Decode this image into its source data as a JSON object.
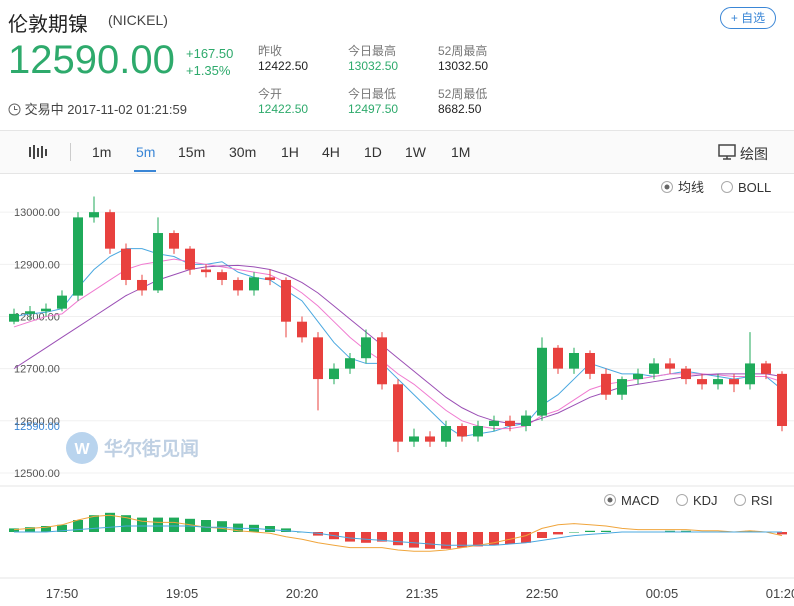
{
  "header": {
    "title": "伦敦期镍",
    "code": "(NICKEL)",
    "price": "12590.00",
    "change": "+167.50",
    "change_pct": "+1.35%",
    "status": "交易中 2017-11-02 01:21:59",
    "watch_button": "+ 自选",
    "stats": [
      {
        "label": "昨收",
        "value": "12422.50"
      },
      {
        "label": "今日最高",
        "value": "13032.50"
      },
      {
        "label": "52周最高",
        "value": "13032.50"
      },
      {
        "label": "今开",
        "value": "12422.50"
      },
      {
        "label": "今日最低",
        "value": "12497.50"
      },
      {
        "label": "52周最低",
        "value": "8682.50"
      }
    ]
  },
  "toolbar": {
    "intervals": [
      "1m",
      "5m",
      "15m",
      "30m",
      "1H",
      "4H",
      "1D",
      "1W",
      "1M"
    ],
    "active": "5m",
    "draw": "绘图"
  },
  "watermark": "华尔街见闻",
  "chart_data": {
    "type": "candlestick",
    "indicator_options": [
      "均线",
      "BOLL"
    ],
    "lower_options": [
      "MACD",
      "KDJ",
      "RSI"
    ],
    "xlabels": [
      "17:50",
      "19:05",
      "20:20",
      "21:35",
      "22:50",
      "00:05",
      "01:20"
    ],
    "ylim": [
      12475,
      13077
    ],
    "yticks": [
      {
        "value": 12500,
        "label": "12500.00"
      },
      {
        "value": 12600,
        "label": "12600.00"
      },
      {
        "value": 12700,
        "label": "12700.00"
      },
      {
        "value": 12800,
        "label": "12800.00"
      },
      {
        "value": 12900,
        "label": "12900.00"
      },
      {
        "value": 13000,
        "label": "13000.00"
      }
    ],
    "up_color": "#1faa5a",
    "down_color": "#e8413e",
    "open": [
      12790,
      12805,
      12810,
      12815,
      12840,
      12990,
      13000,
      12930,
      12870,
      12850,
      12960,
      12930,
      12890,
      12885,
      12870,
      12850,
      12875,
      12870,
      12790,
      12760,
      12680,
      12700,
      12720,
      12760,
      12670,
      12560,
      12570,
      12560,
      12590,
      12570,
      12590,
      12600,
      12590,
      12610,
      12740,
      12700,
      12730,
      12690,
      12650,
      12680,
      12690,
      12710,
      12700,
      12680,
      12670,
      12680,
      12670,
      12710,
      12690
    ],
    "high": [
      12815,
      12820,
      12825,
      12850,
      13000,
      13030,
      13005,
      12940,
      12880,
      12990,
      12965,
      12935,
      12900,
      12890,
      12875,
      12885,
      12890,
      12875,
      12800,
      12770,
      12710,
      12730,
      12775,
      12770,
      12680,
      12585,
      12580,
      12600,
      12595,
      12600,
      12610,
      12610,
      12620,
      12760,
      12745,
      12740,
      12735,
      12700,
      12685,
      12700,
      12720,
      12720,
      12705,
      12690,
      12690,
      12690,
      12770,
      12715,
      12695
    ],
    "low": [
      12785,
      12795,
      12800,
      12810,
      12830,
      12980,
      12920,
      12860,
      12840,
      12845,
      12920,
      12880,
      12875,
      12860,
      12840,
      12840,
      12860,
      12760,
      12750,
      12620,
      12670,
      12690,
      12710,
      12660,
      12540,
      12550,
      12550,
      12550,
      12560,
      12560,
      12580,
      12580,
      12580,
      12600,
      12690,
      12690,
      12680,
      12640,
      12640,
      12670,
      12680,
      12690,
      12670,
      12660,
      12660,
      12655,
      12660,
      12680,
      12580
    ],
    "close": [
      12805,
      12810,
      12815,
      12840,
      12990,
      13000,
      12930,
      12870,
      12850,
      12960,
      12930,
      12890,
      12885,
      12870,
      12850,
      12875,
      12870,
      12790,
      12760,
      12680,
      12700,
      12720,
      12760,
      12670,
      12560,
      12570,
      12560,
      12590,
      12570,
      12590,
      12600,
      12590,
      12610,
      12740,
      12700,
      12730,
      12690,
      12650,
      12680,
      12690,
      12710,
      12700,
      12680,
      12670,
      12680,
      12670,
      12710,
      12690,
      12590
    ],
    "ma": [
      {
        "color": "#4aa8e0",
        "values": [
          12800,
          12805,
          12808,
          12815,
          12855,
          12890,
          12915,
          12930,
          12930,
          12920,
          12915,
          12900,
          12900,
          12905,
          12885,
          12875,
          12870,
          12850,
          12830,
          12790,
          12750,
          12720,
          12710,
          12710,
          12680,
          12650,
          12620,
          12590,
          12570,
          12575,
          12580,
          12590,
          12595,
          12630,
          12650,
          12680,
          12710,
          12700,
          12690,
          12690,
          12685,
          12690,
          12695,
          12690,
          12685,
          12680,
          12685,
          12685,
          12660
        ]
      },
      {
        "color": "#f07ad0",
        "values": [
          12780,
          12790,
          12800,
          12805,
          12830,
          12850,
          12870,
          12890,
          12900,
          12905,
          12910,
          12905,
          12900,
          12895,
          12890,
          12885,
          12880,
          12865,
          12845,
          12820,
          12790,
          12760,
          12735,
          12715,
          12690,
          12670,
          12645,
          12620,
          12600,
          12590,
          12585,
          12585,
          12590,
          12610,
          12620,
          12640,
          12660,
          12670,
          12675,
          12680,
          12685,
          12690,
          12690,
          12690,
          12688,
          12685,
          12685,
          12685,
          12675
        ]
      },
      {
        "color": "#9b4fb5",
        "values": [
          12700,
          12720,
          12740,
          12760,
          12780,
          12800,
          12820,
          12840,
          12855,
          12870,
          12880,
          12890,
          12895,
          12897,
          12898,
          12895,
          12890,
          12880,
          12865,
          12845,
          12820,
          12795,
          12770,
          12745,
          12720,
          12695,
          12670,
          12645,
          12625,
          12610,
          12600,
          12595,
          12595,
          12605,
          12615,
          12630,
          12645,
          12655,
          12665,
          12670,
          12675,
          12680,
          12685,
          12688,
          12690,
          12690,
          12690,
          12690,
          12685
        ]
      }
    ],
    "macd": {
      "ylim": [
        -20,
        20
      ],
      "hist": [
        3,
        4,
        5,
        6,
        10,
        14,
        16,
        14,
        12,
        12,
        12,
        11,
        10,
        9,
        7,
        6,
        5,
        3,
        0,
        -3,
        -6,
        -8,
        -9,
        -8,
        -11,
        -13,
        -14,
        -14,
        -13,
        -12,
        -11,
        -10,
        -9,
        -5,
        -2,
        0,
        1,
        1,
        0,
        0,
        0,
        1,
        1,
        0,
        0,
        0,
        1,
        0,
        -2
      ],
      "dif": {
        "color": "#f0a53c",
        "values": [
          2,
          3,
          4,
          6,
          10,
          13,
          14,
          12,
          9,
          8,
          8,
          6,
          4,
          3,
          1,
          0,
          -1,
          -4,
          -6,
          -9,
          -11,
          -13,
          -13,
          -13,
          -15,
          -16,
          -16,
          -15,
          -13,
          -11,
          -9,
          -6,
          -3,
          3,
          6,
          7,
          6,
          5,
          3,
          2,
          2,
          2,
          2,
          1,
          1,
          0,
          1,
          0,
          -3
        ]
      },
      "dea": {
        "color": "#4aa8e0",
        "values": [
          0,
          0,
          0,
          1,
          2,
          3,
          4,
          5,
          5,
          5,
          5,
          5,
          4,
          4,
          3,
          3,
          2,
          1,
          0,
          -1,
          -3,
          -5,
          -6,
          -7,
          -8,
          -9,
          -10,
          -11,
          -11,
          -11,
          -11,
          -10,
          -9,
          -7,
          -5,
          -3,
          -2,
          -1,
          0,
          0,
          0,
          0,
          0,
          0,
          0,
          0,
          0,
          0,
          0
        ]
      }
    }
  }
}
